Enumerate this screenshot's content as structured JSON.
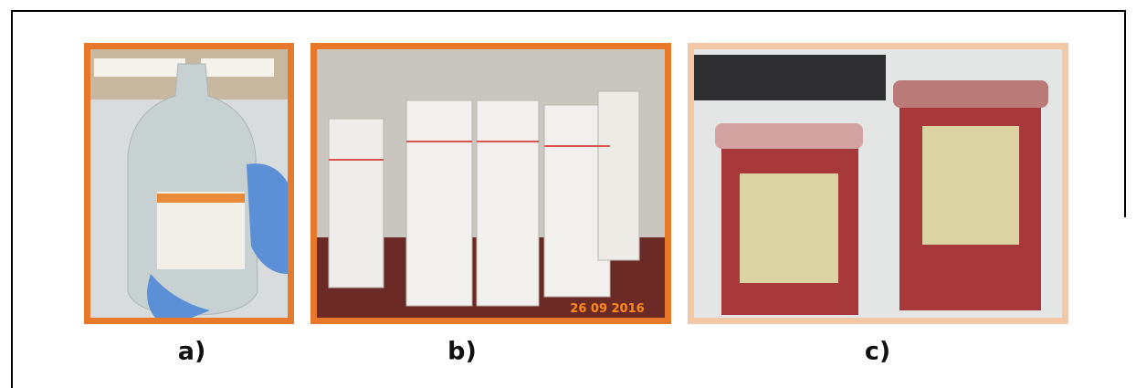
{
  "panels": [
    {
      "label": "a)"
    },
    {
      "label": "b)",
      "stamp": "26 09 2016"
    },
    {
      "label": "c)"
    }
  ]
}
